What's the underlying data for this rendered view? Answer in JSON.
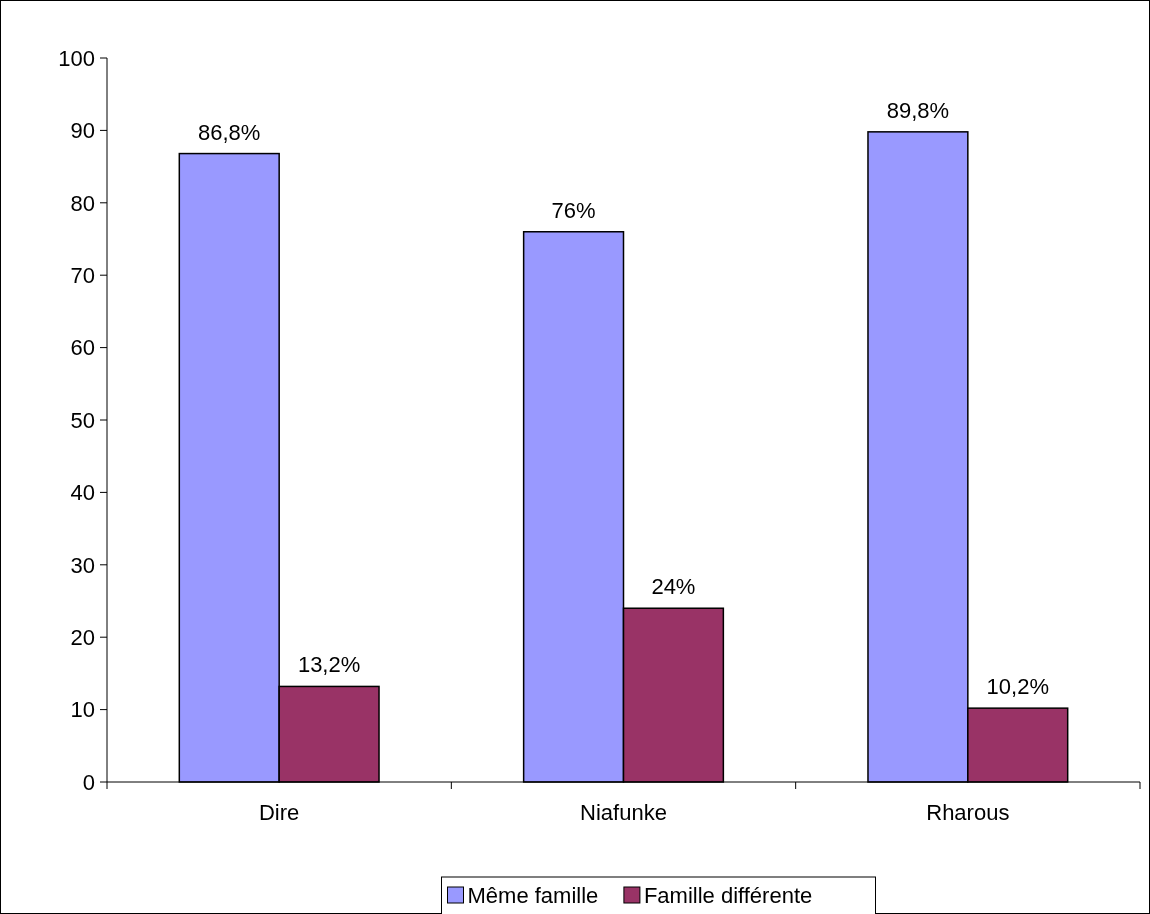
{
  "chart_data": {
    "type": "bar",
    "categories": [
      "Dire",
      "Niafunke",
      "Rharous"
    ],
    "series": [
      {
        "name": "Même famille",
        "color": "#9999ff",
        "values": [
          86.8,
          76,
          89.8
        ],
        "value_labels": [
          "86,8%",
          "76%",
          "89,8%"
        ]
      },
      {
        "name": "Famille différente",
        "color": "#993366",
        "values": [
          13.2,
          24,
          10.2
        ],
        "value_labels": [
          "13,2%",
          "24%",
          "10,2%"
        ]
      }
    ],
    "ylim": [
      0,
      100
    ],
    "yticks": [
      0,
      10,
      20,
      30,
      40,
      50,
      60,
      70,
      80,
      90,
      100
    ],
    "grid": false,
    "legend": "bottom"
  }
}
